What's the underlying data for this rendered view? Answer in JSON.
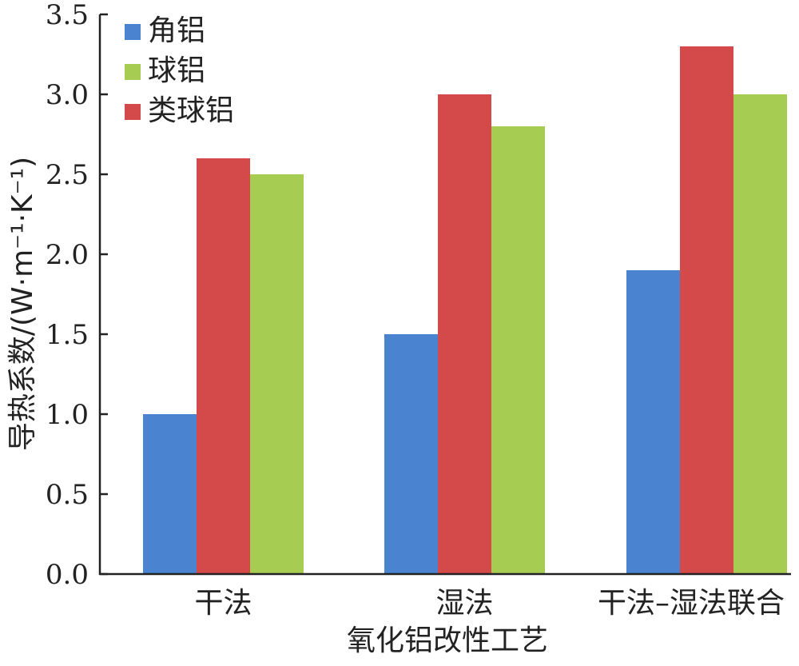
{
  "chart_data": {
    "type": "bar",
    "categories": [
      "干法",
      "湿法",
      "干法–湿法联合"
    ],
    "series": [
      {
        "name": "角铝",
        "color": "#4a84d0",
        "values": [
          1.0,
          1.5,
          1.9
        ]
      },
      {
        "name": "类球铝",
        "color": "#d44a4a",
        "values": [
          2.6,
          3.0,
          3.3
        ]
      },
      {
        "name": "球铝",
        "color": "#a6cc52",
        "values": [
          2.5,
          2.8,
          3.0
        ]
      }
    ],
    "legend_order": [
      "角铝",
      "球铝",
      "类球铝"
    ],
    "xlabel": "氧化铝改性工艺",
    "ylabel": "导热系数/(W·m⁻¹·K⁻¹)",
    "ylim": [
      0,
      3.5
    ],
    "yticks": [
      "0.0",
      "0.5",
      "1.0",
      "1.5",
      "2.0",
      "2.5",
      "3.0",
      "3.5"
    ],
    "grid": false,
    "legend_position": "top-left"
  }
}
